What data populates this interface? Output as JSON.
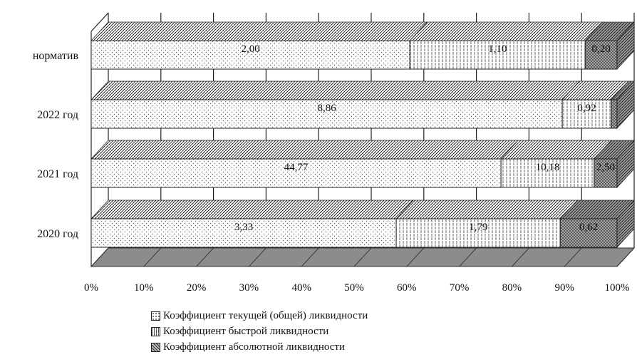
{
  "chart_data": {
    "type": "bar",
    "orientation": "horizontal",
    "stacked": "percent",
    "three_d": true,
    "categories": [
      "норматив",
      "2022 год",
      "2021 год",
      "2020 год"
    ],
    "series": [
      {
        "name": "Коэффициент текущей (общей) ликвидности",
        "values": [
          2.0,
          8.86,
          44.77,
          3.33
        ],
        "labels": [
          "2,00",
          "8,86",
          "44,77",
          "3,33"
        ],
        "pattern": "dots",
        "color": "#ffffff"
      },
      {
        "name": "Коэффициент быстрой ликвидности",
        "values": [
          1.1,
          0.92,
          10.18,
          1.79
        ],
        "labels": [
          "1,10",
          "0,92",
          "10,18",
          "1,79"
        ],
        "pattern": "vertical-lines",
        "color": "#ffffff"
      },
      {
        "name": "Коэффициент абсолютной ликвидности",
        "values": [
          0.2,
          0.11,
          2.5,
          0.62
        ],
        "labels": [
          "0,20",
          "",
          "2,50",
          "0,62"
        ],
        "pattern": "crosshatch",
        "color": "#bdbdbd"
      }
    ],
    "x_ticks": [
      "0%",
      "10%",
      "20%",
      "30%",
      "40%",
      "50%",
      "60%",
      "70%",
      "80%",
      "90%",
      "100%"
    ],
    "xlim": [
      0,
      100
    ],
    "grid": "vertical",
    "legend_position": "bottom",
    "title": "",
    "xlabel": "",
    "ylabel": ""
  }
}
